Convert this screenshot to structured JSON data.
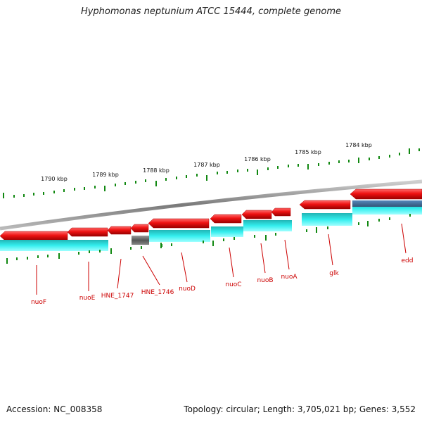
{
  "title": "Hyphomonas neptunium ATCC 15444, complete genome",
  "footer": {
    "accession_label": "Accession:",
    "accession": "NC_008358",
    "topology_text": "Topology: circular; Length: 3,705,021 bp; Genes: 3,552"
  },
  "ticks": [
    {
      "label": "1790 kbp"
    },
    {
      "label": "1789 kbp"
    },
    {
      "label": "1788 kbp"
    },
    {
      "label": "1787 kbp"
    },
    {
      "label": "1786 kbp"
    },
    {
      "label": "1785 kbp"
    },
    {
      "label": "1784 kbp"
    }
  ],
  "genes": [
    {
      "name": "nuoF"
    },
    {
      "name": "nuoE"
    },
    {
      "name": "HNE_1747"
    },
    {
      "name": "HNE_1746"
    },
    {
      "name": "nuoD"
    },
    {
      "name": "nuoC"
    },
    {
      "name": "nuoB"
    },
    {
      "name": "nuoA"
    },
    {
      "name": "glk"
    },
    {
      "name": "edd"
    }
  ],
  "colors": {
    "forward_gene": "#ee1111",
    "cds": "#22dddd",
    "pseudo": "#666666",
    "label": "#cc0000",
    "tick": "#118811",
    "backbone": "#888888"
  }
}
